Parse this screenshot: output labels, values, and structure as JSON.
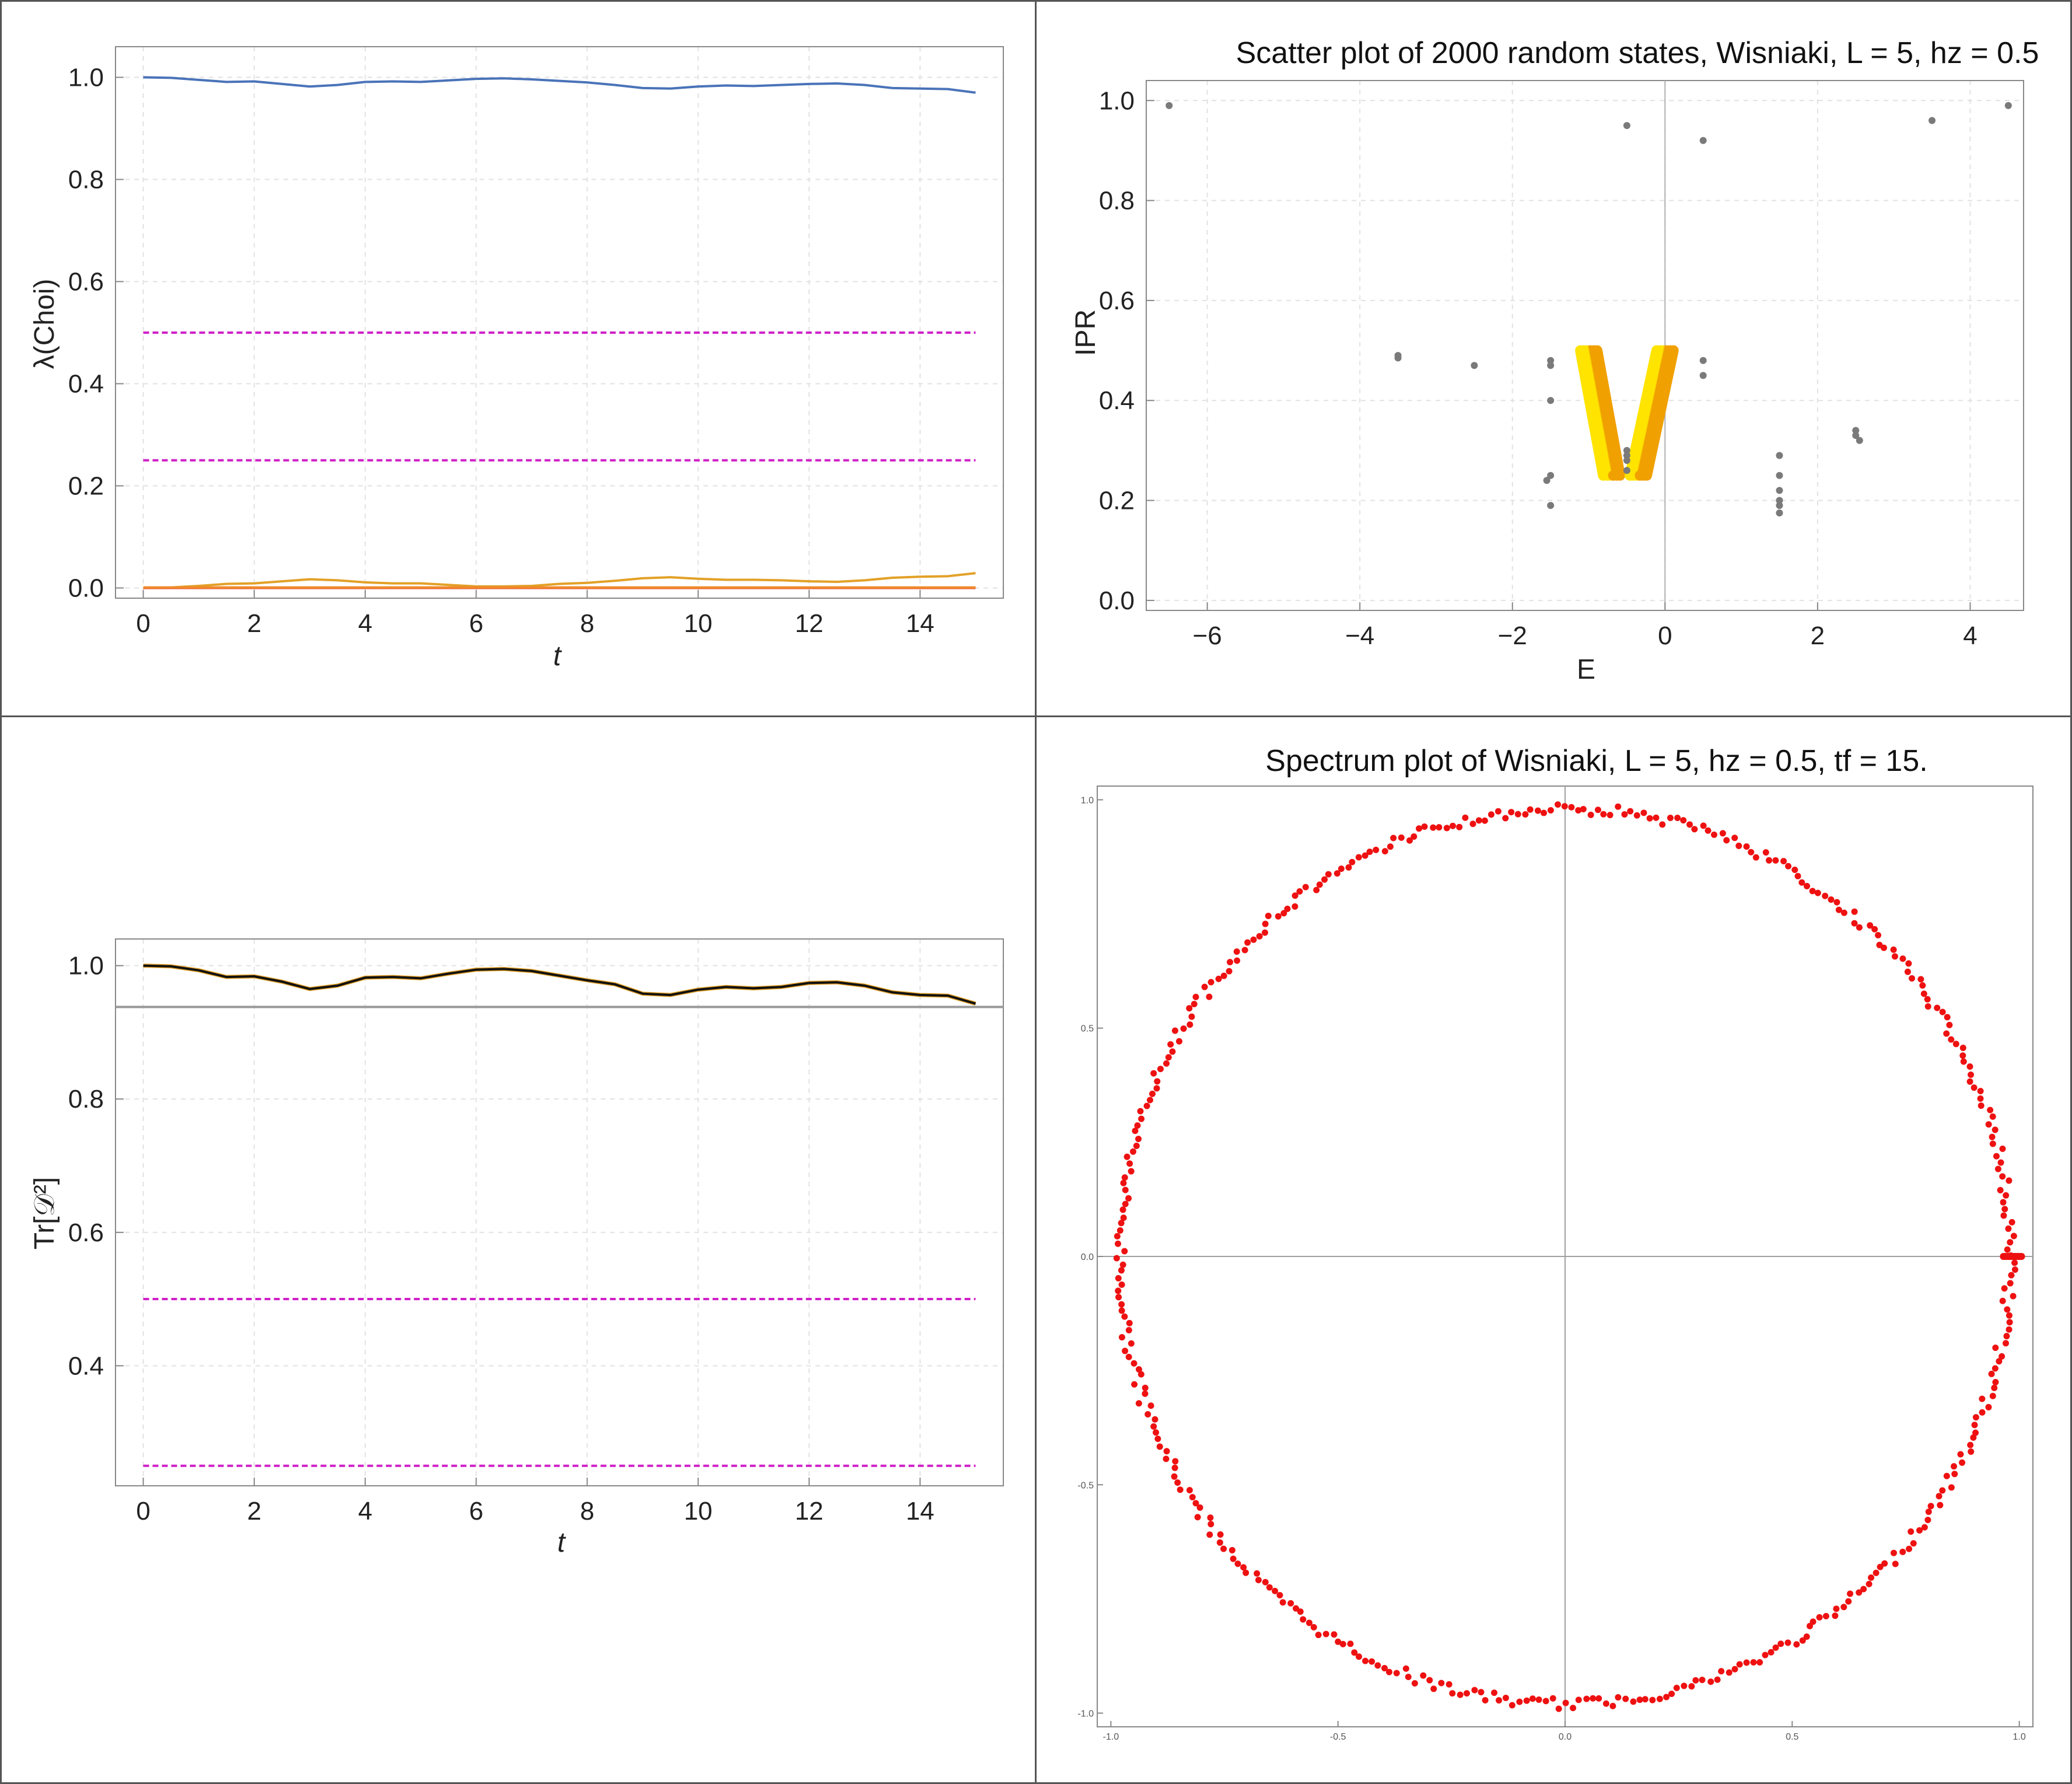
{
  "chart_data": [
    {
      "type": "line",
      "title": "",
      "xlabel": "t",
      "ylabel": "λ(Choi)",
      "xlim": [
        -0.5,
        15.5
      ],
      "ylim": [
        -0.02,
        1.06
      ],
      "xticks": [
        "0",
        "2",
        "4",
        "6",
        "8",
        "10",
        "12",
        "14"
      ],
      "yticks": [
        "0.0",
        "0.2",
        "0.4",
        "0.6",
        "0.8",
        "1.0"
      ],
      "grid": true,
      "legend": "none",
      "colors": {
        "blue": "#4a73b8",
        "gold": "#e3a128",
        "red": "#e8432a",
        "orange": "#f08a2a",
        "magenta": "#d020c8"
      },
      "series": [
        {
          "color": "blue",
          "style": "solid",
          "x": [
            0,
            0.5,
            1,
            1.5,
            2,
            2.5,
            3,
            3.5,
            4,
            4.5,
            5,
            5.5,
            6,
            6.5,
            7,
            7.5,
            8,
            8.5,
            9,
            9.5,
            10,
            10.5,
            11,
            11.5,
            12,
            12.5,
            13,
            13.5,
            14,
            14.5,
            15
          ],
          "y": [
            1.0,
            0.999,
            0.995,
            0.991,
            0.992,
            0.987,
            0.982,
            0.985,
            0.991,
            0.992,
            0.991,
            0.994,
            0.997,
            0.998,
            0.996,
            0.993,
            0.99,
            0.985,
            0.979,
            0.978,
            0.982,
            0.984,
            0.983,
            0.985,
            0.987,
            0.988,
            0.985,
            0.979,
            0.978,
            0.977,
            0.97
          ]
        },
        {
          "color": "gold",
          "style": "solid",
          "x": [
            0,
            0.5,
            1,
            1.5,
            2,
            2.5,
            3,
            3.5,
            4,
            4.5,
            5,
            5.5,
            6,
            6.5,
            7,
            7.5,
            8,
            8.5,
            9,
            9.5,
            10,
            10.5,
            11,
            11.5,
            12,
            12.5,
            13,
            13.5,
            14,
            14.5,
            15
          ],
          "y": [
            0.0,
            0.001,
            0.004,
            0.008,
            0.009,
            0.013,
            0.017,
            0.015,
            0.011,
            0.009,
            0.009,
            0.006,
            0.003,
            0.003,
            0.004,
            0.008,
            0.01,
            0.014,
            0.019,
            0.021,
            0.018,
            0.016,
            0.016,
            0.015,
            0.013,
            0.012,
            0.015,
            0.02,
            0.022,
            0.023,
            0.029
          ]
        },
        {
          "color": "red",
          "style": "solid",
          "x": [
            0,
            15
          ],
          "y": [
            0.0,
            0.0
          ]
        },
        {
          "color": "orange",
          "style": "solid",
          "x": [
            0,
            15
          ],
          "y": [
            0.001,
            0.001
          ]
        },
        {
          "color": "magenta",
          "style": "dashed",
          "x": [
            0,
            15
          ],
          "y": [
            0.5,
            0.5
          ]
        },
        {
          "color": "magenta",
          "style": "dashed",
          "x": [
            0,
            15
          ],
          "y": [
            0.25,
            0.25
          ]
        }
      ]
    },
    {
      "type": "scatter",
      "title": "Scatter plot of 2000 random states, Wisniaki, L = 5, hz = 0.5",
      "xlabel": "E",
      "ylabel": "IPR",
      "xlim": [
        -6.8,
        4.7
      ],
      "ylim": [
        -0.02,
        1.04
      ],
      "xticks": [
        "−6",
        "−4",
        "−2",
        "0",
        "2",
        "4"
      ],
      "yticks": [
        "0.0",
        "0.2",
        "0.4",
        "0.6",
        "0.8",
        "1.0"
      ],
      "grid": true,
      "legend": "none",
      "colors": {
        "points": "#7a7a7a",
        "band_light": "#ffe400",
        "band_dark": "#f0a000",
        "axis": "#b0b0b0"
      },
      "points": [
        {
          "x": -6.5,
          "y": 0.99
        },
        {
          "x": -0.5,
          "y": 0.95
        },
        {
          "x": 0.5,
          "y": 0.92
        },
        {
          "x": 3.5,
          "y": 0.96
        },
        {
          "x": 4.5,
          "y": 0.99
        },
        {
          "x": -3.5,
          "y": 0.49
        },
        {
          "x": -3.5,
          "y": 0.485
        },
        {
          "x": -2.5,
          "y": 0.47
        },
        {
          "x": -1.5,
          "y": 0.48
        },
        {
          "x": -1.5,
          "y": 0.47
        },
        {
          "x": -1.5,
          "y": 0.4
        },
        {
          "x": -1.5,
          "y": 0.25
        },
        {
          "x": -1.55,
          "y": 0.24
        },
        {
          "x": -1.5,
          "y": 0.19
        },
        {
          "x": -0.5,
          "y": 0.3
        },
        {
          "x": -0.5,
          "y": 0.29
        },
        {
          "x": -0.5,
          "y": 0.28
        },
        {
          "x": -0.5,
          "y": 0.26
        },
        {
          "x": 0.5,
          "y": 0.48
        },
        {
          "x": 0.5,
          "y": 0.45
        },
        {
          "x": 1.5,
          "y": 0.29
        },
        {
          "x": 1.5,
          "y": 0.25
        },
        {
          "x": 1.5,
          "y": 0.22
        },
        {
          "x": 1.5,
          "y": 0.2
        },
        {
          "x": 1.5,
          "y": 0.19
        },
        {
          "x": 1.5,
          "y": 0.175
        },
        {
          "x": 2.5,
          "y": 0.34
        },
        {
          "x": 2.5,
          "y": 0.33
        },
        {
          "x": 2.55,
          "y": 0.32
        }
      ],
      "band": {
        "left_arm": {
          "top": [
            -1.0,
            0.5
          ],
          "bottom": [
            -0.7,
            0.25
          ]
        },
        "right_arm": {
          "top": [
            0.0,
            0.5
          ],
          "bottom": [
            -0.35,
            0.25
          ]
        },
        "width": 0.22
      }
    },
    {
      "type": "line",
      "title": "",
      "xlabel": "t",
      "ylabel": "Tr[𝒟²]",
      "xlim": [
        -0.5,
        15.5
      ],
      "ylim": [
        0.22,
        1.04
      ],
      "xticks": [
        "0",
        "2",
        "4",
        "6",
        "8",
        "10",
        "12",
        "14"
      ],
      "yticks": [
        "0.4",
        "0.6",
        "0.8",
        "1.0"
      ],
      "grid": true,
      "legend": "none",
      "colors": {
        "main": "#111111",
        "main_under": "#e3a128",
        "ref": "#999999",
        "magenta": "#d020c8"
      },
      "series": [
        {
          "color": "main",
          "style": "solid",
          "x": [
            0,
            0.5,
            1,
            1.5,
            2,
            2.5,
            3,
            3.5,
            4,
            4.5,
            5,
            5.5,
            6,
            6.5,
            7,
            7.5,
            8,
            8.5,
            9,
            9.5,
            10,
            10.5,
            11,
            11.5,
            12,
            12.5,
            13,
            13.5,
            14,
            14.5,
            15
          ],
          "y": [
            1.0,
            0.999,
            0.993,
            0.983,
            0.984,
            0.976,
            0.965,
            0.97,
            0.982,
            0.983,
            0.981,
            0.988,
            0.994,
            0.995,
            0.992,
            0.985,
            0.978,
            0.972,
            0.958,
            0.956,
            0.964,
            0.968,
            0.966,
            0.968,
            0.974,
            0.975,
            0.97,
            0.96,
            0.956,
            0.955,
            0.943
          ]
        },
        {
          "color": "ref",
          "style": "solid",
          "x": [
            -0.5,
            15.5
          ],
          "y": [
            0.938,
            0.938
          ]
        },
        {
          "color": "magenta",
          "style": "dashed",
          "x": [
            0,
            15
          ],
          "y": [
            0.5,
            0.5
          ]
        },
        {
          "color": "magenta",
          "style": "dashed",
          "x": [
            0,
            15
          ],
          "y": [
            0.25,
            0.25
          ]
        }
      ]
    },
    {
      "type": "scatter",
      "title": "Spectrum plot of Wisniaki, L = 5, hz = 0.5, tf = 15.",
      "xlabel": "",
      "ylabel": "",
      "xlim": [
        -1.03,
        1.03
      ],
      "ylim": [
        -1.03,
        1.03
      ],
      "xticks": [
        "-1.0",
        "-0.5",
        "0.0",
        "0.5",
        "1.0"
      ],
      "yticks": [
        "-1.0",
        "-0.5",
        "0.0",
        "0.5",
        "1.0"
      ],
      "grid": false,
      "legend": "none",
      "colors": {
        "points": "#ee1111",
        "axis": "#a0a0a0"
      },
      "description_points": "eigenvalues on a circle of radius ~0.98 centered at origin, about 420 points, plus a cluster on the real axis near 0.97–1.0",
      "ring": {
        "radius": 0.98,
        "count": 420,
        "jitter": 0.012
      },
      "cluster": {
        "x_from": 0.965,
        "x_to": 1.005,
        "y": 0.0,
        "count": 12
      }
    }
  ]
}
